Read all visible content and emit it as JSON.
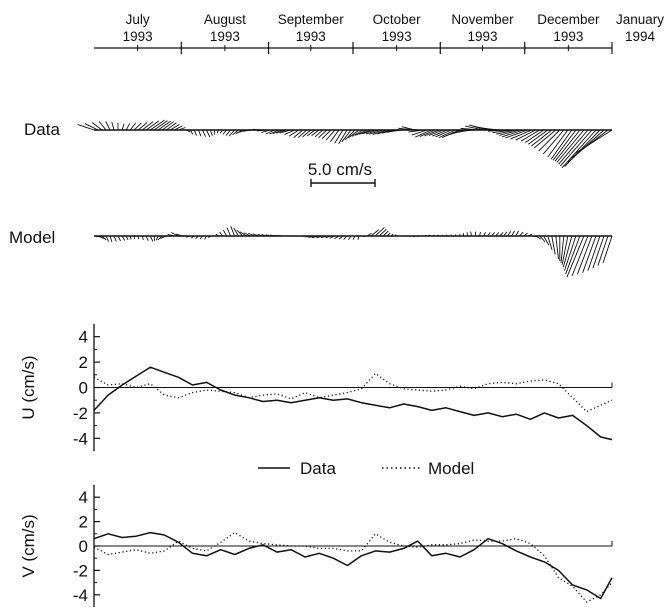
{
  "chart_data": [
    {
      "type": "line",
      "title": "",
      "time_axis": {
        "labels": [
          {
            "month": "July",
            "year": "1993"
          },
          {
            "month": "August",
            "year": "1993"
          },
          {
            "month": "September",
            "year": "1993"
          },
          {
            "month": "October",
            "year": "1993"
          },
          {
            "month": "November",
            "year": "1993"
          },
          {
            "month": "December",
            "year": "1993"
          },
          {
            "month": "January",
            "year": "1994"
          }
        ],
        "range": [
          "1993-07-01",
          "1994-01-01"
        ]
      },
      "stick_panels": [
        {
          "name": "Data"
        },
        {
          "name": "Model"
        }
      ],
      "scale_label": "5.0 cm/s",
      "scale_value": 5.0,
      "legend": {
        "data": "Data",
        "model": "Model",
        "position": "between panels"
      }
    },
    {
      "type": "line",
      "ylabel": "U (cm/s)",
      "ylim": [
        -5,
        5
      ],
      "yticks": [
        "4",
        "2",
        "0",
        "-2",
        "-4"
      ],
      "x": [
        "1993-07-01",
        "1993-07-06",
        "1993-07-11",
        "1993-07-16",
        "1993-07-21",
        "1993-07-26",
        "1993-07-31",
        "1993-08-05",
        "1993-08-10",
        "1993-08-15",
        "1993-08-20",
        "1993-08-25",
        "1993-08-30",
        "1993-09-04",
        "1993-09-09",
        "1993-09-14",
        "1993-09-19",
        "1993-09-24",
        "1993-09-29",
        "1993-10-04",
        "1993-10-09",
        "1993-10-14",
        "1993-10-19",
        "1993-10-24",
        "1993-10-29",
        "1993-11-03",
        "1993-11-08",
        "1993-11-13",
        "1993-11-18",
        "1993-11-23",
        "1993-11-28",
        "1993-12-03",
        "1993-12-08",
        "1993-12-13",
        "1993-12-18",
        "1993-12-23",
        "1993-12-28",
        "1994-01-01"
      ],
      "series": [
        {
          "name": "Data",
          "style": "solid",
          "values": [
            -1.8,
            -0.6,
            0.2,
            0.9,
            1.6,
            1.2,
            0.8,
            0.2,
            0.4,
            -0.2,
            -0.6,
            -0.8,
            -1.1,
            -1.0,
            -1.2,
            -1.0,
            -0.8,
            -1.0,
            -0.9,
            -1.2,
            -1.4,
            -1.6,
            -1.3,
            -1.5,
            -1.8,
            -1.6,
            -1.9,
            -2.2,
            -2.0,
            -2.3,
            -2.1,
            -2.5,
            -2.0,
            -2.4,
            -2.2,
            -3.0,
            -3.9,
            -4.1
          ]
        },
        {
          "name": "Model",
          "style": "dotted",
          "values": [
            0.8,
            0.2,
            0.3,
            0.0,
            0.3,
            -0.6,
            -0.8,
            -0.4,
            -0.2,
            -0.3,
            -0.4,
            -0.8,
            -0.6,
            -0.5,
            -0.9,
            -0.4,
            -0.8,
            -0.6,
            -0.4,
            -0.1,
            1.1,
            0.3,
            -0.1,
            -0.2,
            -0.3,
            -0.2,
            0.1,
            -0.1,
            0.3,
            0.4,
            0.3,
            0.5,
            0.6,
            0.3,
            -0.8,
            -1.9,
            -1.4,
            -1.0
          ]
        }
      ]
    },
    {
      "type": "line",
      "ylabel": "V (cm/s)",
      "ylim": [
        -5,
        5
      ],
      "yticks": [
        "4",
        "2",
        "0",
        "-2",
        "-4"
      ],
      "x": [
        "1993-07-01",
        "1993-07-06",
        "1993-07-11",
        "1993-07-16",
        "1993-07-21",
        "1993-07-26",
        "1993-07-31",
        "1993-08-05",
        "1993-08-10",
        "1993-08-15",
        "1993-08-20",
        "1993-08-25",
        "1993-08-30",
        "1993-09-04",
        "1993-09-09",
        "1993-09-14",
        "1993-09-19",
        "1993-09-24",
        "1993-09-29",
        "1993-10-04",
        "1993-10-09",
        "1993-10-14",
        "1993-10-19",
        "1993-10-24",
        "1993-10-29",
        "1993-11-03",
        "1993-11-08",
        "1993-11-13",
        "1993-11-18",
        "1993-11-23",
        "1993-11-28",
        "1993-12-03",
        "1993-12-08",
        "1993-12-13",
        "1993-12-18",
        "1993-12-23",
        "1993-12-28",
        "1994-01-01"
      ],
      "series": [
        {
          "name": "Data",
          "style": "solid",
          "values": [
            0.6,
            1.0,
            0.7,
            0.8,
            1.1,
            0.9,
            0.3,
            -0.6,
            -0.8,
            -0.3,
            -0.7,
            -0.2,
            0.1,
            -0.5,
            -0.3,
            -0.9,
            -0.6,
            -1.0,
            -1.6,
            -0.8,
            -0.4,
            -0.5,
            -0.2,
            0.4,
            -0.8,
            -0.6,
            -0.9,
            -0.3,
            0.6,
            0.2,
            -0.4,
            -0.9,
            -1.3,
            -2.0,
            -3.2,
            -3.6,
            -4.3,
            -2.6
          ]
        },
        {
          "name": "Model",
          "style": "dotted",
          "values": [
            -0.1,
            -0.7,
            -0.5,
            -0.3,
            -0.6,
            -0.4,
            0.4,
            -0.2,
            -0.4,
            0.3,
            1.1,
            0.4,
            0.2,
            0.1,
            0.0,
            0.0,
            -0.2,
            -0.2,
            -0.4,
            -0.4,
            1.0,
            0.3,
            0.0,
            -0.1,
            0.1,
            0.1,
            0.2,
            0.5,
            0.4,
            0.4,
            0.6,
            0.2,
            -0.8,
            -2.6,
            -3.3,
            -4.6,
            -4.0,
            -3.0
          ]
        }
      ]
    }
  ]
}
